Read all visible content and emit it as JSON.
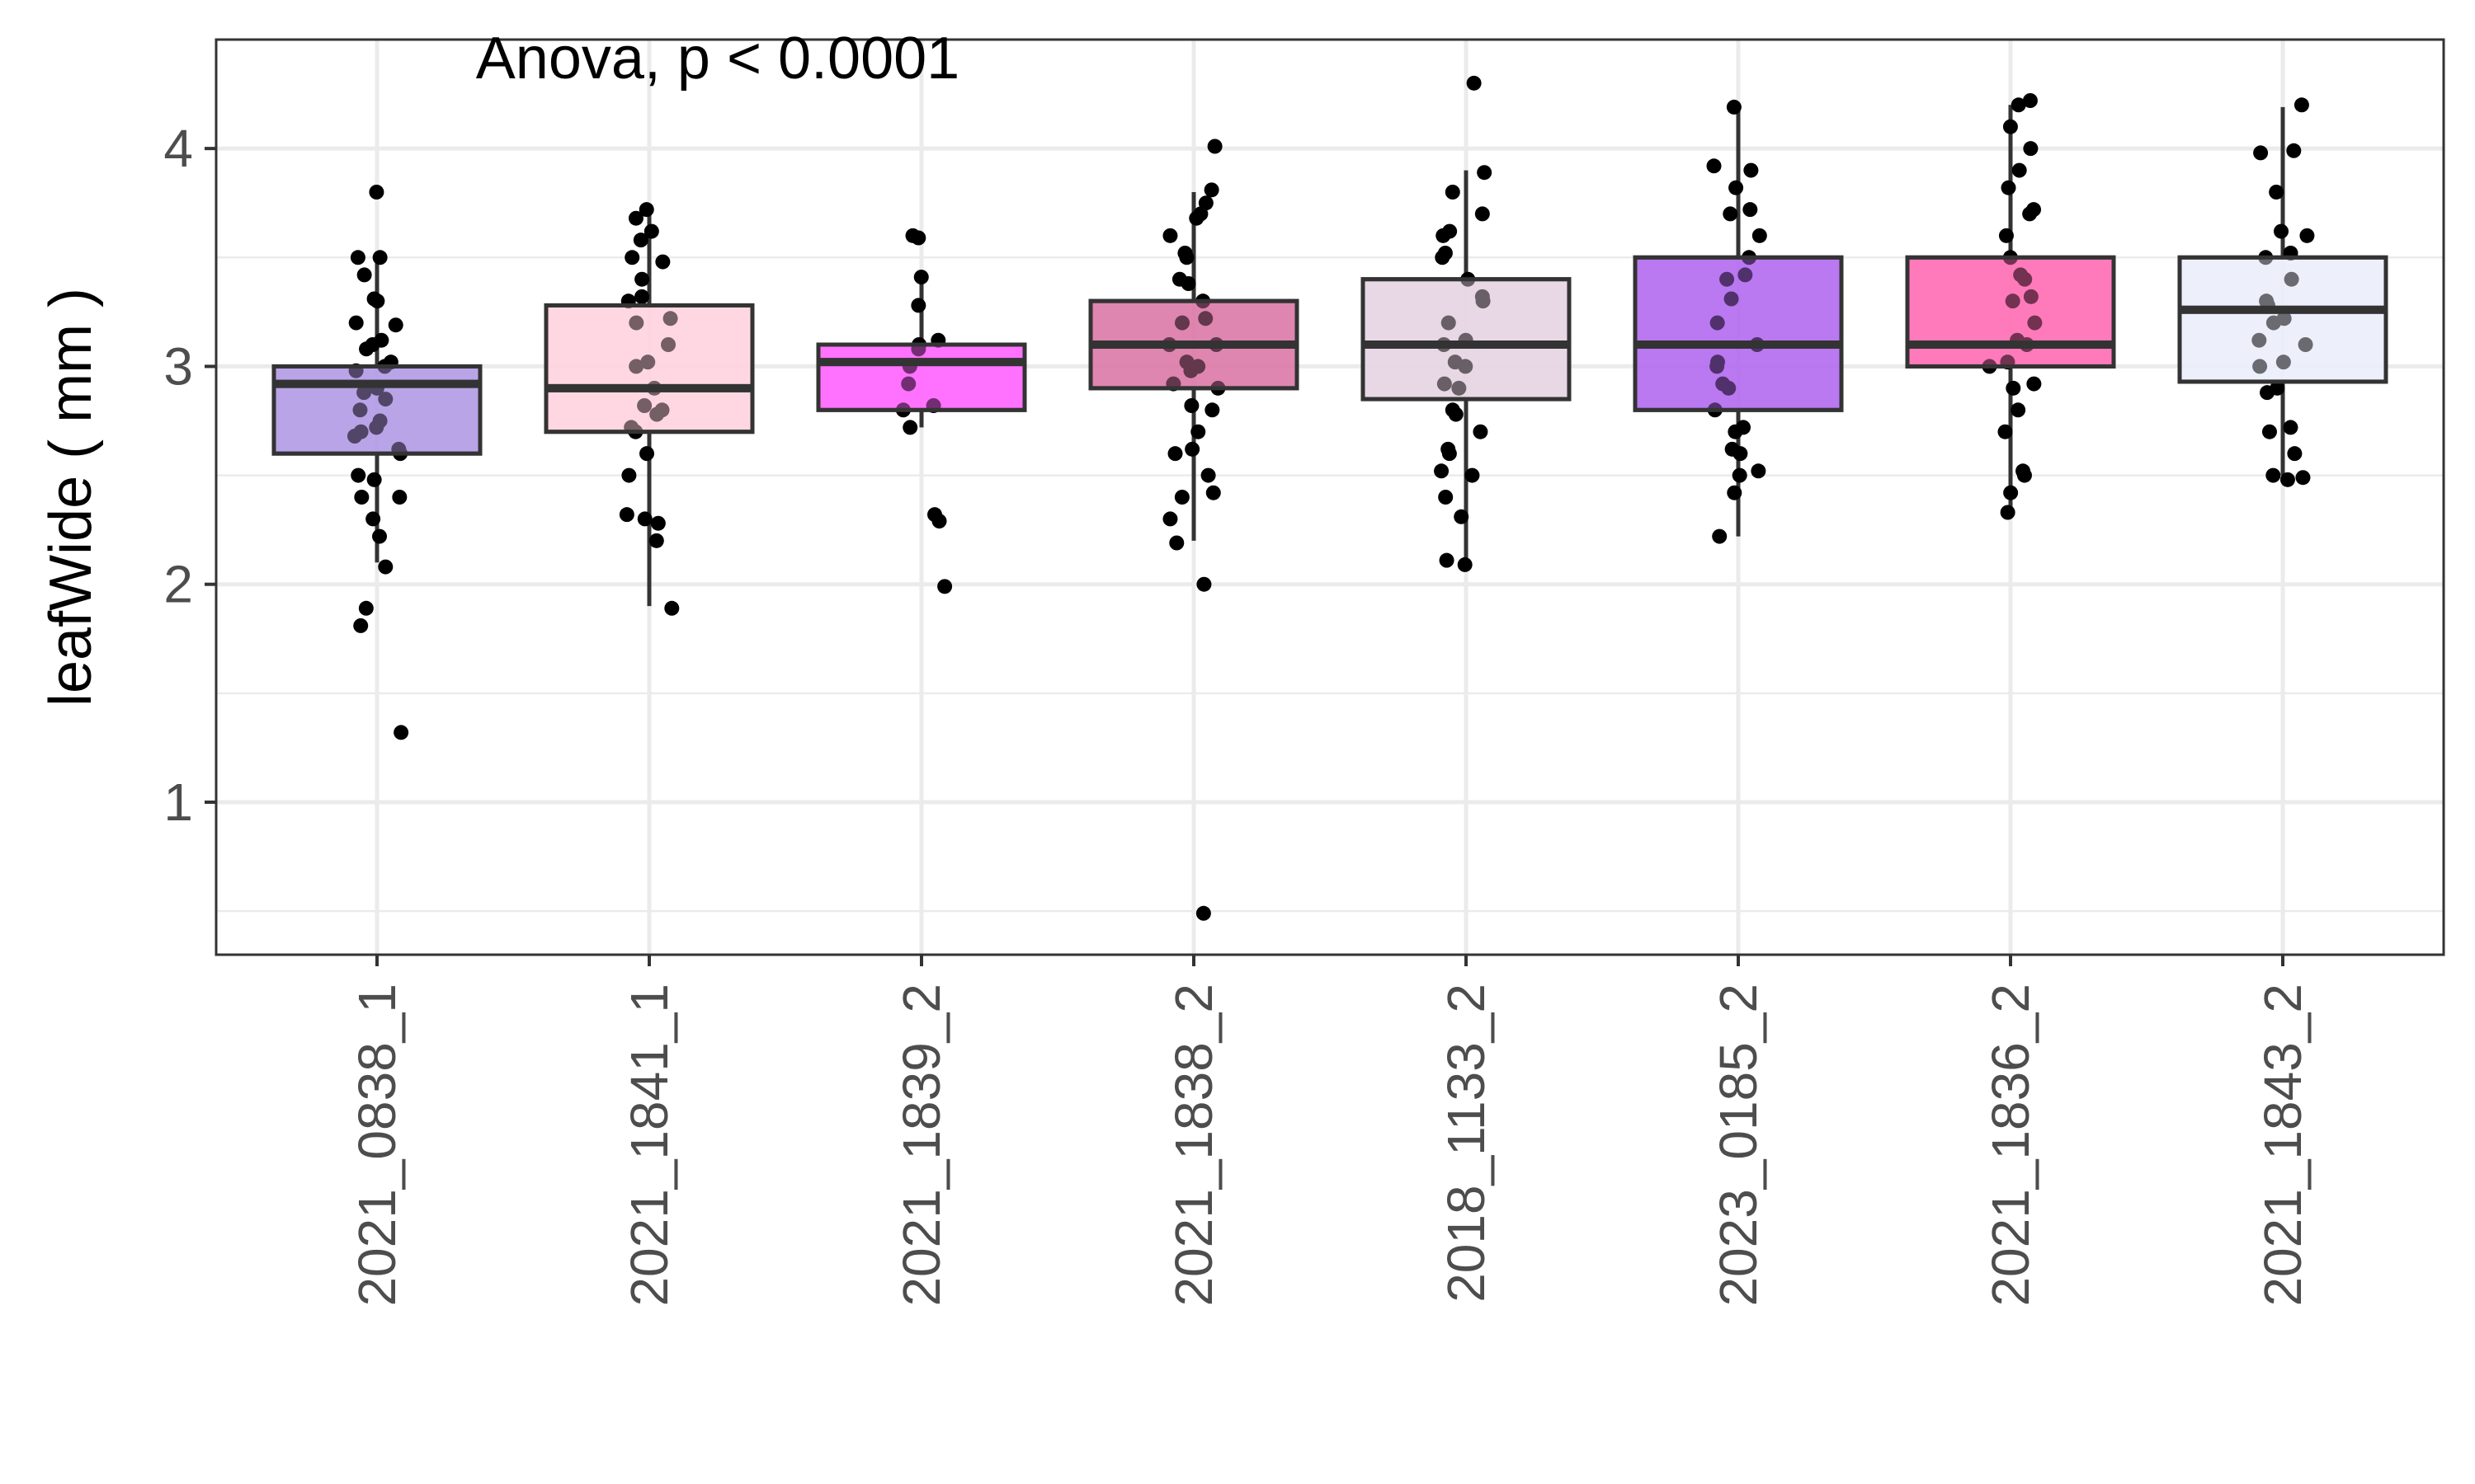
{
  "chart_data": {
    "type": "box",
    "title": "",
    "annotation": "Anova, p < 0.0001",
    "xlabel": "",
    "ylabel": "leafWide ( mm )",
    "ylim": [
      0.3,
      4.5
    ],
    "yticks": [
      1,
      2,
      3,
      4
    ],
    "grid": true,
    "legend": "none",
    "categories": [
      "2021_0838_1",
      "2021_1841_1",
      "2021_1839_2",
      "2021_1838_2",
      "2018_1133_2",
      "2023_0185_2",
      "2021_1836_2",
      "2021_1843_2"
    ],
    "colors": [
      "#b39ce6",
      "#ffd3e0",
      "#ff66ff",
      "#dc7aa9",
      "#e6d4e3",
      "#b46cf0",
      "#ff6eb4",
      "#eceefa"
    ],
    "boxes": [
      {
        "category": "2021_0838_1",
        "q1": 2.6,
        "median": 2.92,
        "q3": 3.0,
        "whisker_low": 2.1,
        "whisker_high": 3.5,
        "points": [
          3.8,
          3.5,
          3.5,
          3.42,
          3.31,
          3.3,
          3.2,
          3.19,
          3.12,
          3.1,
          3.08,
          3.02,
          3.0,
          2.98,
          2.9,
          2.88,
          2.85,
          2.8,
          2.75,
          2.72,
          2.7,
          2.68,
          2.62,
          2.6,
          2.5,
          2.48,
          2.4,
          2.4,
          2.3,
          2.22,
          2.08,
          1.89,
          1.81,
          1.32
        ]
      },
      {
        "category": "2021_1841_1",
        "q1": 2.7,
        "median": 2.9,
        "q3": 3.28,
        "whisker_low": 1.9,
        "whisker_high": 3.72,
        "points": [
          3.72,
          3.68,
          3.62,
          3.58,
          3.5,
          3.48,
          3.4,
          3.32,
          3.3,
          3.22,
          3.2,
          3.1,
          3.02,
          3.0,
          2.9,
          2.82,
          2.8,
          2.78,
          2.72,
          2.7,
          2.6,
          2.5,
          2.32,
          2.3,
          2.28,
          2.2,
          1.89
        ]
      },
      {
        "category": "2021_1839_2",
        "q1": 2.8,
        "median": 3.02,
        "q3": 3.1,
        "whisker_low": 2.72,
        "whisker_high": 3.4,
        "points": [
          3.6,
          3.59,
          3.41,
          3.28,
          3.12,
          3.1,
          3.08,
          3.0,
          2.92,
          2.82,
          2.8,
          2.72,
          2.32,
          2.29,
          1.99
        ]
      },
      {
        "category": "2021_1838_2",
        "q1": 2.9,
        "median": 3.1,
        "q3": 3.3,
        "whisker_low": 2.2,
        "whisker_high": 3.8,
        "points": [
          4.01,
          3.81,
          3.75,
          3.7,
          3.68,
          3.6,
          3.52,
          3.5,
          3.4,
          3.38,
          3.3,
          3.22,
          3.2,
          3.1,
          3.1,
          3.02,
          3.0,
          2.98,
          2.92,
          2.9,
          2.82,
          2.8,
          2.7,
          2.62,
          2.6,
          2.5,
          2.42,
          2.4,
          2.3,
          2.19,
          2.0,
          0.49
        ]
      },
      {
        "category": "2018_1133_2",
        "q1": 2.85,
        "median": 3.1,
        "q3": 3.4,
        "whisker_low": 2.1,
        "whisker_high": 3.9,
        "points": [
          4.3,
          3.89,
          3.8,
          3.7,
          3.62,
          3.6,
          3.52,
          3.5,
          3.4,
          3.32,
          3.3,
          3.2,
          3.12,
          3.1,
          3.02,
          3.0,
          2.92,
          2.9,
          2.8,
          2.78,
          2.7,
          2.62,
          2.6,
          2.52,
          2.5,
          2.4,
          2.31,
          2.11,
          2.09
        ]
      },
      {
        "category": "2023_0185_2",
        "q1": 2.8,
        "median": 3.1,
        "q3": 3.5,
        "whisker_low": 2.22,
        "whisker_high": 4.2,
        "points": [
          4.19,
          3.92,
          3.9,
          3.82,
          3.72,
          3.7,
          3.6,
          3.5,
          3.42,
          3.4,
          3.31,
          3.2,
          3.1,
          3.02,
          3.0,
          2.92,
          2.9,
          2.8,
          2.72,
          2.7,
          2.62,
          2.6,
          2.52,
          2.5,
          2.42,
          2.22
        ]
      },
      {
        "category": "2021_1836_2",
        "q1": 3.0,
        "median": 3.1,
        "q3": 3.5,
        "whisker_low": 2.32,
        "whisker_high": 4.2,
        "points": [
          4.22,
          4.2,
          4.1,
          4.0,
          3.9,
          3.82,
          3.72,
          3.7,
          3.6,
          3.5,
          3.42,
          3.4,
          3.32,
          3.3,
          3.2,
          3.12,
          3.1,
          3.02,
          3.0,
          2.92,
          2.9,
          2.8,
          2.7,
          2.52,
          2.5,
          2.42,
          2.33
        ]
      },
      {
        "category": "2021_1843_2",
        "q1": 2.93,
        "median": 3.26,
        "q3": 3.5,
        "whisker_low": 2.5,
        "whisker_high": 4.19,
        "points": [
          4.2,
          3.99,
          3.98,
          3.8,
          3.62,
          3.6,
          3.52,
          3.5,
          3.4,
          3.3,
          3.28,
          3.22,
          3.2,
          3.12,
          3.1,
          3.02,
          3.0,
          2.9,
          2.88,
          2.72,
          2.7,
          2.6,
          2.5,
          2.49,
          2.48
        ]
      }
    ]
  }
}
